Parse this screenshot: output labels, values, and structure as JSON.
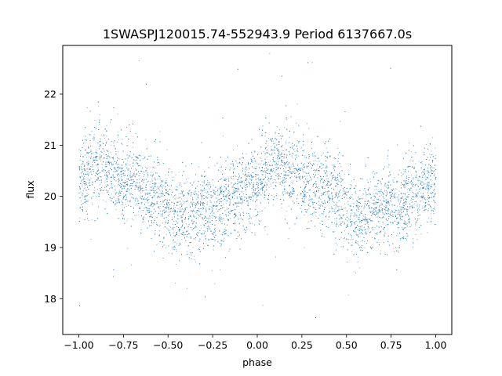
{
  "chart_data": {
    "type": "scatter",
    "title": "1SWASPJ120015.74-552943.9 Period 6137667.0s",
    "xlabel": "phase",
    "ylabel": "flux",
    "xlim": [
      -1.09,
      1.09
    ],
    "ylim": [
      17.3,
      22.95
    ],
    "x_ticks": [
      -1.0,
      -0.75,
      -0.5,
      -0.25,
      0.0,
      0.25,
      0.5,
      0.75,
      1.0
    ],
    "x_tick_labels": [
      "−1.00",
      "−0.75",
      "−0.50",
      "−0.25",
      "0.00",
      "0.25",
      "0.50",
      "0.75",
      "1.00"
    ],
    "y_ticks": [
      18,
      19,
      20,
      21,
      22
    ],
    "y_tick_labels": [
      "18",
      "19",
      "20",
      "21",
      "22"
    ],
    "grid": false,
    "legend": false,
    "marker_color": "#1f77b4",
    "series": [
      {
        "phase_range": [
          -1.0,
          1.0
        ],
        "profile_phase": [
          0.0,
          0.05,
          0.1,
          0.15,
          0.2,
          0.25,
          0.3,
          0.35,
          0.4,
          0.45,
          0.5,
          0.55,
          0.6,
          0.65,
          0.7,
          0.75,
          0.8,
          0.85,
          0.9,
          0.95,
          1.0
        ],
        "profile_flux": [
          20.3,
          20.45,
          20.6,
          20.6,
          20.45,
          20.35,
          20.3,
          20.2,
          20.1,
          20.0,
          19.8,
          19.55,
          19.6,
          19.75,
          19.8,
          19.75,
          19.85,
          19.9,
          20.0,
          20.2,
          20.3
        ],
        "scatter_sigma": 0.4,
        "approx_point_count": 9000
      }
    ]
  }
}
